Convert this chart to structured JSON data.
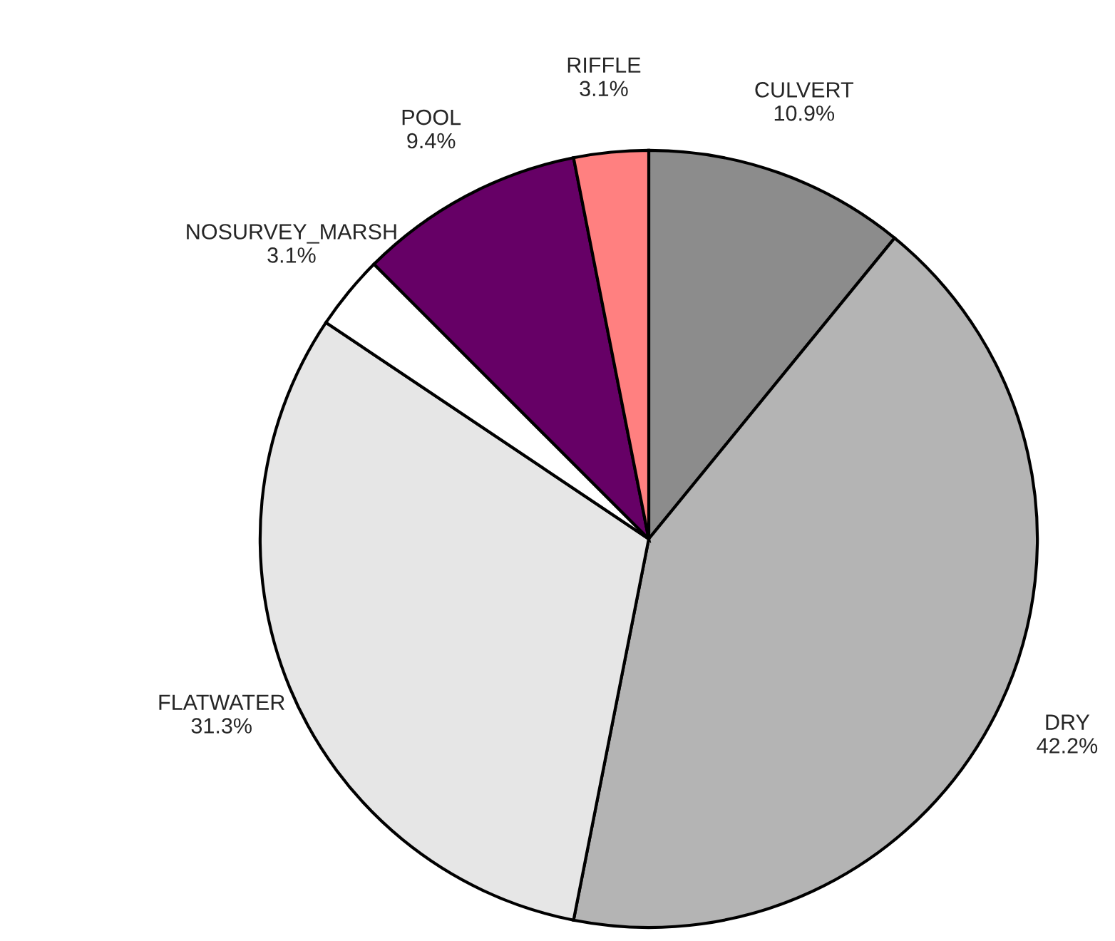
{
  "chart_data": {
    "type": "pie",
    "categories": [
      "CULVERT",
      "DRY",
      "FLATWATER",
      "NOSURVEY_MARSH",
      "POOL",
      "RIFFLE"
    ],
    "values": [
      10.9,
      42.2,
      31.3,
      3.1,
      9.4,
      3.1
    ],
    "value_labels": [
      "10.9%",
      "42.2%",
      "31.3%",
      "3.1%",
      "9.4%",
      "3.1%"
    ],
    "colors": [
      "#8c8c8c",
      "#b4b4b4",
      "#e6e6e6",
      "#ffffff",
      "#660066",
      "#ff8080"
    ],
    "legend": false
  }
}
